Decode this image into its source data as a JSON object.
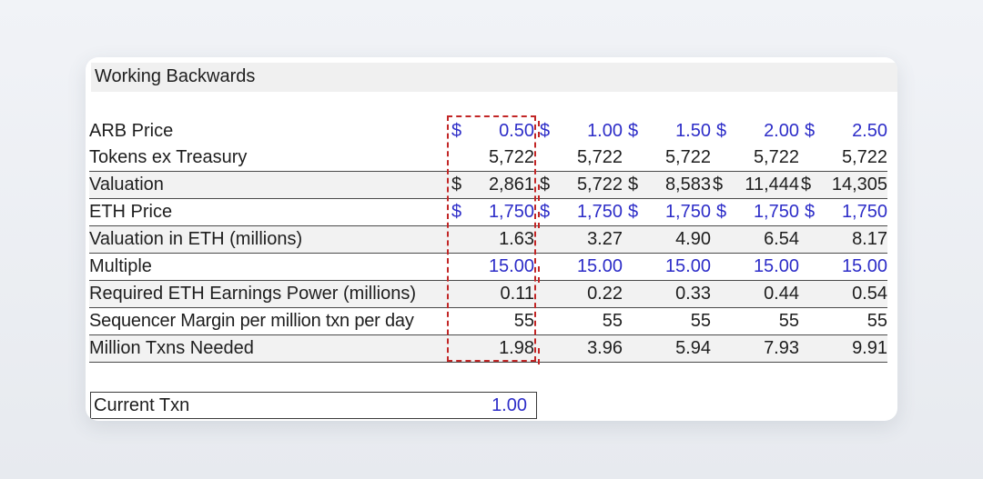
{
  "title": "Working Backwards",
  "rows": [
    {
      "label": "ARB Price",
      "cells": [
        "$|0.50",
        "$|1.00",
        "$|1.50",
        "$|2.00",
        "$|2.50"
      ]
    },
    {
      "label": "Tokens ex Treasury",
      "cells": [
        "5,722",
        "5,722",
        "5,722",
        "5,722",
        "5,722"
      ]
    },
    {
      "label": "Valuation",
      "cells": [
        "$|2,861",
        "$|5,722",
        "$|8,583",
        "$|11,444",
        "$|14,305"
      ]
    },
    {
      "label": "ETH Price",
      "cells": [
        "$|1,750",
        "$|1,750",
        "$|1,750",
        "$|1,750",
        "$|1,750"
      ]
    },
    {
      "label": "Valuation in ETH (millions)",
      "cells": [
        "1.63",
        "3.27",
        "4.90",
        "6.54",
        "8.17"
      ]
    },
    {
      "label": "Multiple",
      "cells": [
        "15.00",
        "15.00",
        "15.00",
        "15.00",
        "15.00"
      ]
    },
    {
      "label": "Required ETH Earnings Power (millions)",
      "cells": [
        "0.11",
        "0.22",
        "0.33",
        "0.44",
        "0.54"
      ]
    },
    {
      "label": "Sequencer Margin per million txn per day",
      "cells": [
        "55",
        "55",
        "55",
        "55",
        "55"
      ]
    },
    {
      "label": "Million Txns Needed",
      "cells": [
        "1.98",
        "3.96",
        "5.94",
        "7.93",
        "9.91"
      ]
    }
  ],
  "current_txn": {
    "label": "Current Txn",
    "value": "1.00"
  },
  "colors": {
    "input_blue": "#2d2dc8",
    "highlight_red": "#c22626",
    "shade": "#f2f2f2"
  }
}
